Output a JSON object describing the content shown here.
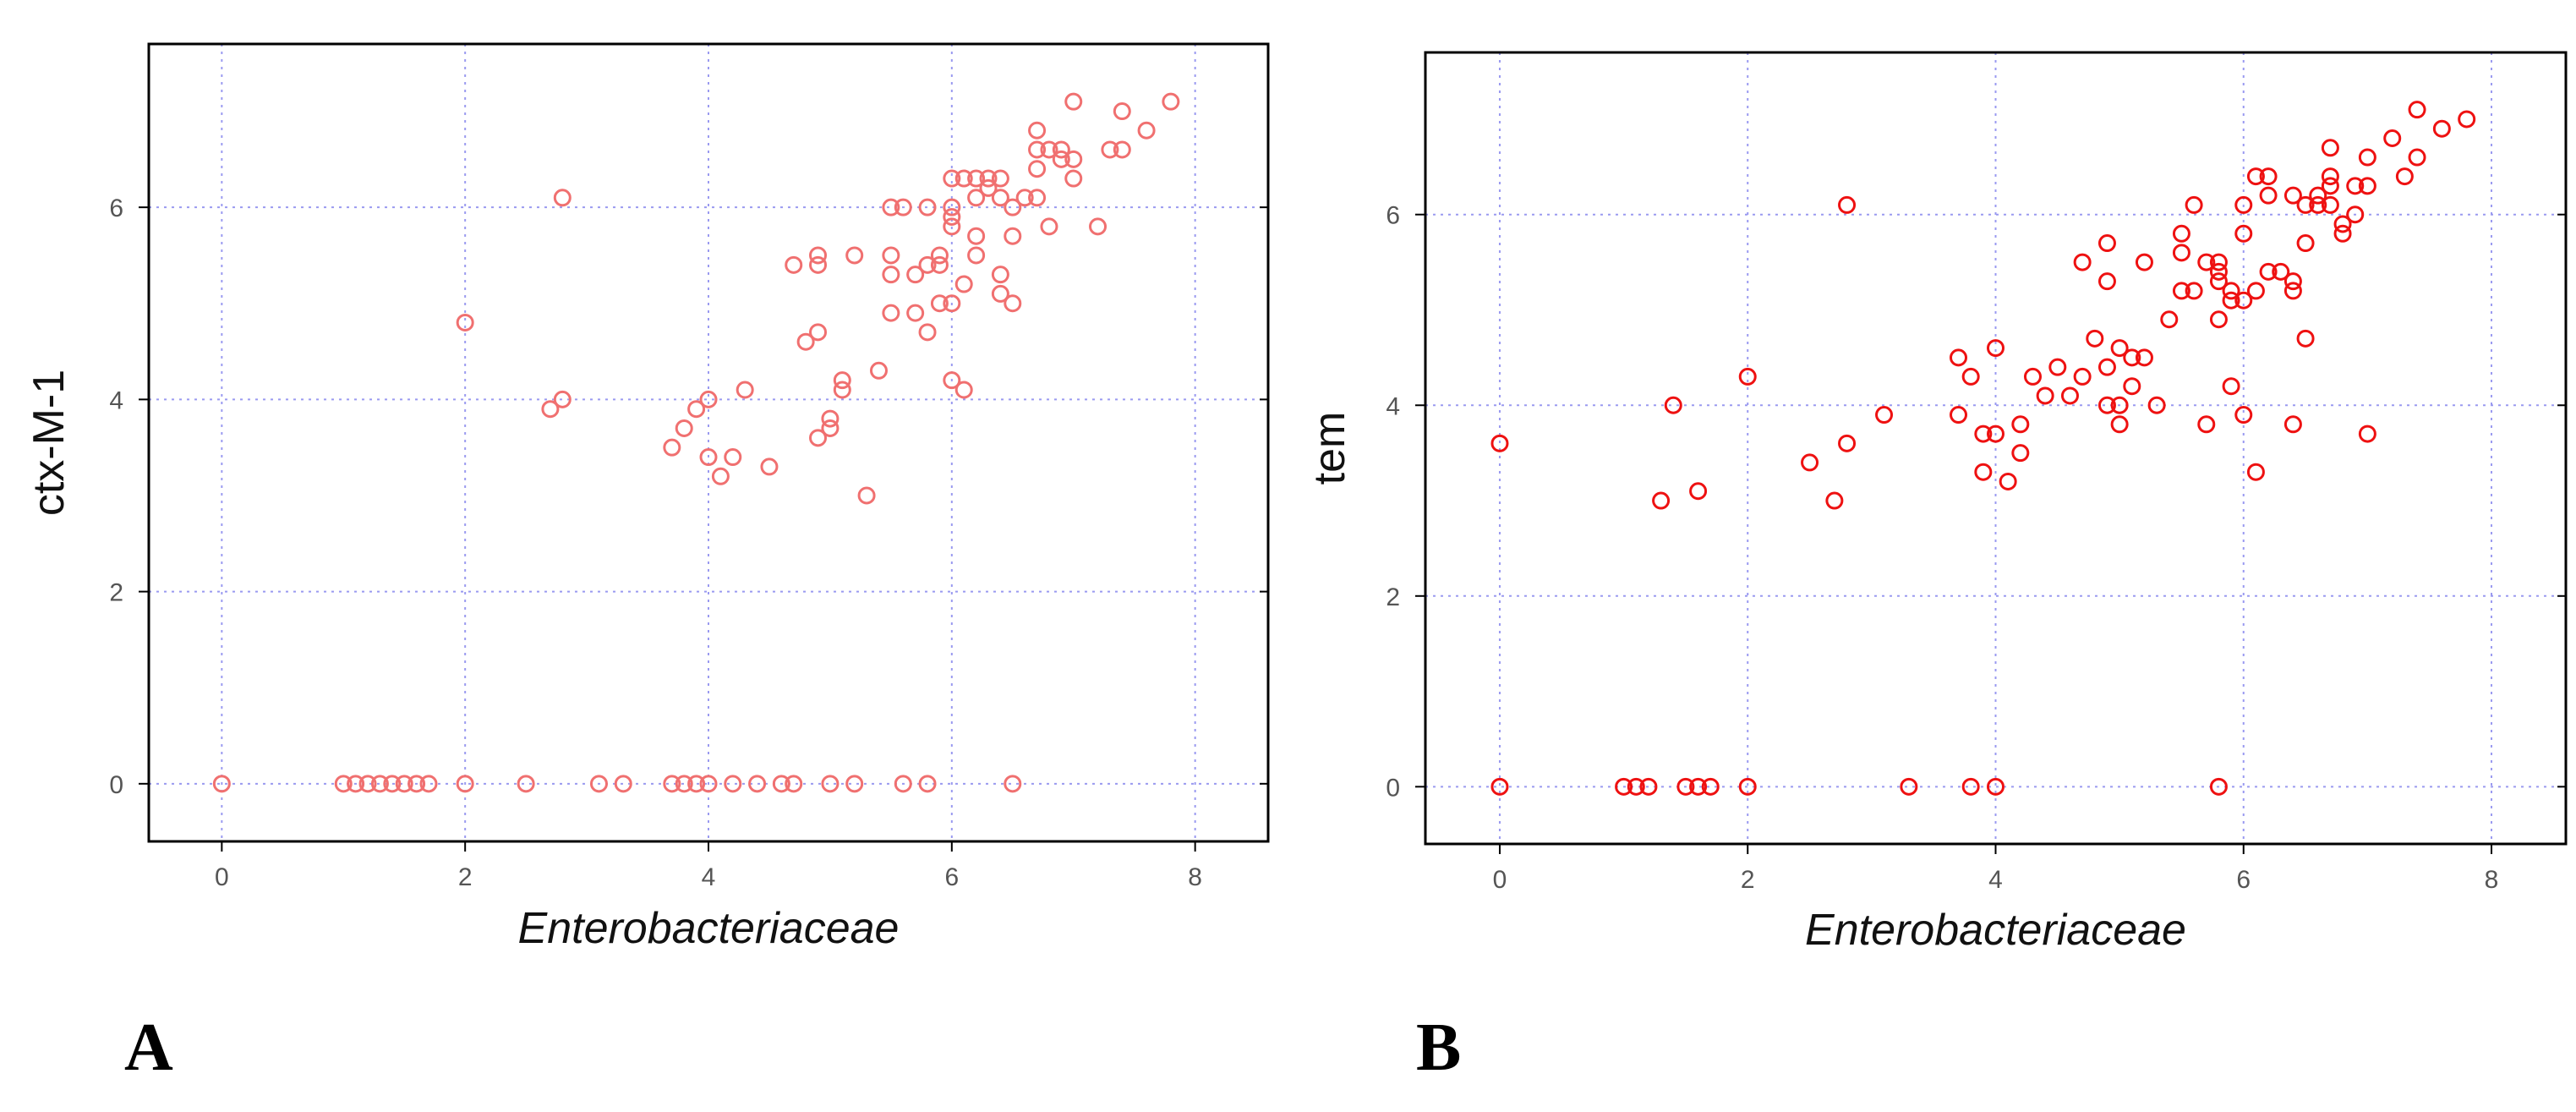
{
  "chart_data": [
    {
      "type": "scatter",
      "panel_label": "A",
      "xlabel": "Enterobacteriaceae",
      "ylabel": "ctx-M-1",
      "xlim": [
        -0.6,
        8.6
      ],
      "ylim": [
        -0.6,
        7.7
      ],
      "xticks": [
        0,
        2,
        4,
        6,
        8
      ],
      "yticks": [
        0,
        2,
        4,
        6
      ],
      "grid": true,
      "marker_color": "#f07070",
      "x": [
        0,
        1,
        1.1,
        1.2,
        1.3,
        1.4,
        1.5,
        1.6,
        1.7,
        2,
        2.5,
        3.1,
        3.3,
        3.7,
        3.8,
        3.9,
        4,
        4.2,
        4.4,
        4.6,
        4.7,
        5,
        5.2,
        5.6,
        5.8,
        6.5,
        2,
        2.7,
        2.8,
        2.8,
        3.7,
        3.8,
        3.9,
        4,
        4,
        4.1,
        4.2,
        4.3,
        4.5,
        4.7,
        4.8,
        4.9,
        4.9,
        4.9,
        4.9,
        5,
        5,
        5.1,
        5.1,
        5.2,
        5.3,
        5.4,
        5.5,
        5.5,
        5.5,
        5.5,
        5.6,
        5.7,
        5.7,
        5.8,
        5.8,
        5.8,
        5.9,
        5.9,
        5.9,
        6,
        6,
        6,
        6,
        6,
        6,
        6.1,
        6.1,
        6.1,
        6.2,
        6.2,
        6.2,
        6.2,
        6.3,
        6.3,
        6.4,
        6.4,
        6.4,
        6.4,
        6.5,
        6.5,
        6.5,
        6.6,
        6.7,
        6.7,
        6.7,
        6.7,
        6.8,
        6.8,
        6.9,
        6.9,
        7,
        7,
        7,
        7.2,
        7.3,
        7.4,
        7.4,
        7.6,
        7.8
      ],
      "y": [
        0,
        0,
        0,
        0,
        0,
        0,
        0,
        0,
        0,
        0,
        0,
        0,
        0,
        0,
        0,
        0,
        0,
        0,
        0,
        0,
        0,
        0,
        0,
        0,
        0,
        0,
        4.8,
        3.9,
        4,
        6.1,
        3.5,
        3.7,
        3.9,
        4,
        3.4,
        3.2,
        3.4,
        4.1,
        3.3,
        5.4,
        4.6,
        4.7,
        3.6,
        5.4,
        5.5,
        3.7,
        3.8,
        4.1,
        4.2,
        5.5,
        3,
        4.3,
        4.9,
        5.3,
        5.5,
        6,
        6,
        5.3,
        4.9,
        6,
        4.7,
        5.4,
        5.5,
        5,
        5.4,
        4.2,
        5,
        5.8,
        5.9,
        6,
        6.3,
        4.1,
        5.2,
        6.3,
        5.5,
        5.7,
        6.1,
        6.3,
        6.3,
        6.2,
        5.1,
        5.3,
        6.1,
        6.3,
        5,
        5.7,
        6,
        6.1,
        6.1,
        6.4,
        6.6,
        6.8,
        5.8,
        6.6,
        6.5,
        6.6,
        6.3,
        6.5,
        7.1,
        5.8,
        6.6,
        6.6,
        7,
        6.8,
        7.1
      ]
    },
    {
      "type": "scatter",
      "panel_label": "B",
      "xlabel": "Enterobacteriaceae",
      "ylabel": "tem",
      "xlim": [
        -0.6,
        8.6
      ],
      "ylim": [
        -0.6,
        7.7
      ],
      "xticks": [
        0,
        2,
        4,
        6,
        8
      ],
      "yticks": [
        0,
        2,
        4,
        6
      ],
      "grid": true,
      "marker_color": "#ee1111",
      "x": [
        0,
        1,
        1.1,
        1.2,
        1.5,
        1.6,
        1.7,
        2,
        3.3,
        3.8,
        4,
        5.8,
        0,
        1.3,
        1.4,
        1.6,
        2,
        2.5,
        2.7,
        2.8,
        2.8,
        3.1,
        3.7,
        3.7,
        3.8,
        3.9,
        3.9,
        4,
        4,
        4.1,
        4.2,
        4.2,
        4.3,
        4.4,
        4.5,
        4.6,
        4.7,
        4.7,
        4.8,
        4.9,
        4.9,
        4.9,
        4.9,
        5,
        5,
        5,
        5.1,
        5.1,
        5.2,
        5.2,
        5.3,
        5.4,
        5.5,
        5.5,
        5.5,
        5.6,
        5.6,
        5.7,
        5.7,
        5.8,
        5.8,
        5.8,
        5.8,
        5.9,
        5.9,
        5.9,
        6,
        6,
        6,
        6,
        6.1,
        6.1,
        6.1,
        6.2,
        6.2,
        6.2,
        6.3,
        6.4,
        6.4,
        6.4,
        6.4,
        6.5,
        6.5,
        6.5,
        6.6,
        6.6,
        6.7,
        6.7,
        6.7,
        6.7,
        6.8,
        6.8,
        6.9,
        6.9,
        7,
        7,
        7,
        7.2,
        7.3,
        7.4,
        7.4,
        7.6,
        7.8
      ],
      "y": [
        0,
        0,
        0,
        0,
        0,
        0,
        0,
        0,
        0,
        0,
        0,
        0,
        3.6,
        3,
        4,
        3.1,
        4.3,
        3.4,
        3,
        3.6,
        6.1,
        3.9,
        3.9,
        4.5,
        4.3,
        3.3,
        3.7,
        3.7,
        4.6,
        3.2,
        3.5,
        3.8,
        4.3,
        4.1,
        4.4,
        4.1,
        4.3,
        5.5,
        4.7,
        4,
        4.4,
        5.3,
        5.7,
        3.8,
        4,
        4.6,
        4.2,
        4.5,
        4.5,
        5.5,
        4,
        4.9,
        5.2,
        5.6,
        5.8,
        5.2,
        6.1,
        3.8,
        5.5,
        4.9,
        5.3,
        5.4,
        5.5,
        4.2,
        5.1,
        5.2,
        3.9,
        5.1,
        5.8,
        6.1,
        3.3,
        5.2,
        6.4,
        5.4,
        6.2,
        6.4,
        5.4,
        3.8,
        5.2,
        5.3,
        6.2,
        4.7,
        5.7,
        6.1,
        6.1,
        6.2,
        6.1,
        6.3,
        6.4,
        6.7,
        5.8,
        5.9,
        6,
        6.3,
        3.7,
        6.3,
        6.6,
        6.8,
        6.4,
        6.6,
        7.1,
        6.9,
        7
      ]
    }
  ]
}
